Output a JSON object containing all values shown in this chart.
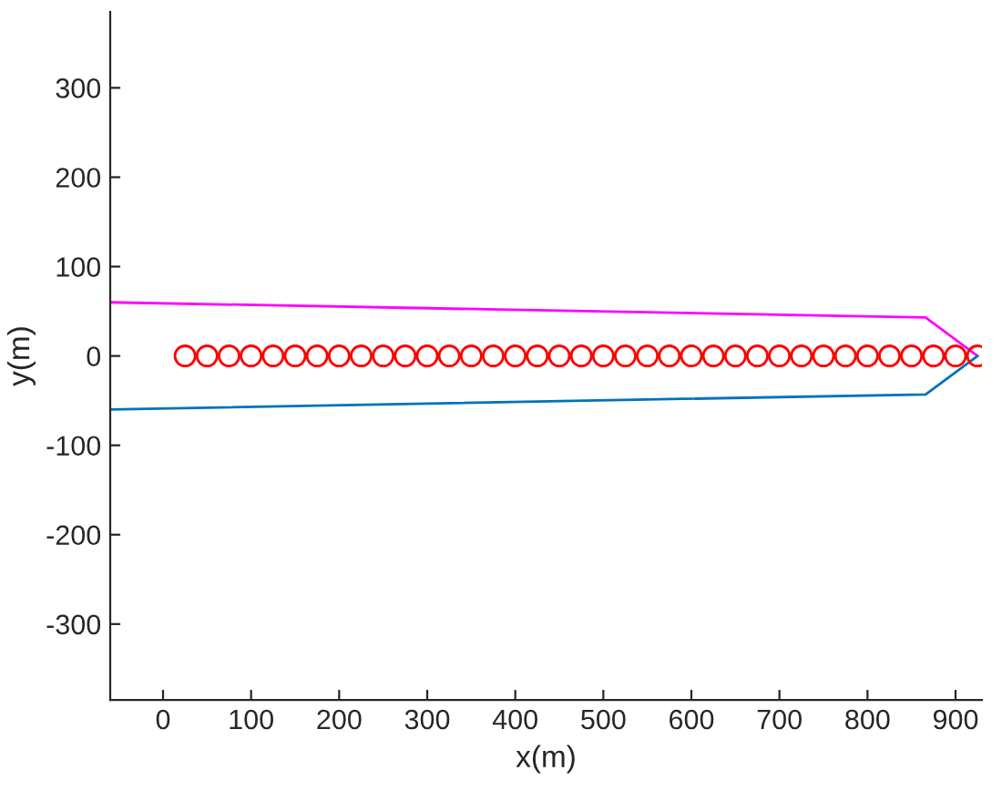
{
  "chart_data": {
    "type": "line",
    "xlabel": "x(m)",
    "ylabel": "y(m)",
    "xlim": [
      -60,
      930
    ],
    "ylim": [
      -385,
      385
    ],
    "xticks": [
      0,
      100,
      200,
      300,
      400,
      500,
      600,
      700,
      800,
      900
    ],
    "yticks": [
      -300,
      -200,
      -100,
      0,
      100,
      200,
      300
    ],
    "grid": false,
    "legend": false,
    "series": [
      {
        "color": "#ff00ff",
        "x": [
          -60,
          866,
          925
        ],
        "values": [
          60,
          43,
          0
        ]
      },
      {
        "color": "#0072bd",
        "x": [
          -60,
          866,
          925
        ],
        "values": [
          -60,
          -43,
          0
        ]
      },
      {
        "type": "scatter",
        "marker": "circle",
        "color": "#ff0000",
        "x": [
          25,
          50,
          75,
          100,
          125,
          150,
          175,
          200,
          225,
          250,
          275,
          300,
          325,
          350,
          375,
          400,
          425,
          450,
          475,
          500,
          525,
          550,
          575,
          600,
          625,
          650,
          675,
          700,
          725,
          750,
          775,
          800,
          825,
          850,
          875,
          900,
          925
        ],
        "values": [
          0,
          0,
          0,
          0,
          0,
          0,
          0,
          0,
          0,
          0,
          0,
          0,
          0,
          0,
          0,
          0,
          0,
          0,
          0,
          0,
          0,
          0,
          0,
          0,
          0,
          0,
          0,
          0,
          0,
          0,
          0,
          0,
          0,
          0,
          0,
          0,
          0
        ]
      }
    ]
  }
}
